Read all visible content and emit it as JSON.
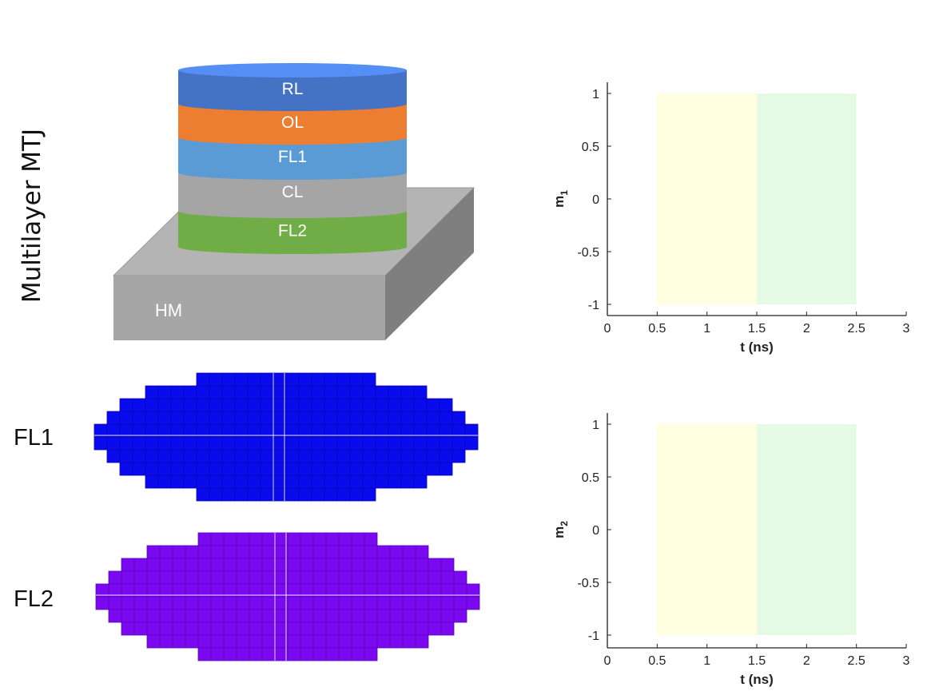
{
  "diagram": {
    "title": "Multilayer MTJ",
    "layers": [
      {
        "label": "RL",
        "color": "#4472C4"
      },
      {
        "label": "OL",
        "color": "#ED7D31"
      },
      {
        "label": "FL1",
        "color": "#5B9BD5"
      },
      {
        "label": "CL",
        "color": "#A5A5A5"
      },
      {
        "label": "FL2",
        "color": "#70AD47"
      }
    ],
    "substrate": {
      "label": "HM",
      "color": "#A6A6A6"
    },
    "grids": [
      {
        "label": "FL1",
        "color": "#0A0AEE"
      },
      {
        "label": "FL2",
        "color": "#7A08F0"
      }
    ]
  },
  "chart_data": [
    {
      "type": "line",
      "xlabel": "t (ns)",
      "ylabel": "m",
      "ylabel_sub": "1",
      "xlim": [
        0,
        3
      ],
      "ylim": [
        -1,
        1
      ],
      "xticks": [
        "0",
        "0.5",
        "1",
        "1.5",
        "2",
        "2.5",
        "3"
      ],
      "yticks": [
        "-1",
        "-0.5",
        "0",
        "0.5",
        "1"
      ],
      "shaded_regions": [
        {
          "x_start": 0.5,
          "x_end": 1.5,
          "color": "#FFFFE0"
        },
        {
          "x_start": 1.5,
          "x_end": 2.5,
          "color": "#E4FAE4"
        }
      ],
      "series": []
    },
    {
      "type": "line",
      "xlabel": "t (ns)",
      "ylabel": "m",
      "ylabel_sub": "2",
      "xlim": [
        0,
        3
      ],
      "ylim": [
        -1,
        1
      ],
      "xticks": [
        "0",
        "0.5",
        "1",
        "1.5",
        "2",
        "2.5",
        "3"
      ],
      "yticks": [
        "-1",
        "-0.5",
        "0",
        "0.5",
        "1"
      ],
      "shaded_regions": [
        {
          "x_start": 0.5,
          "x_end": 1.5,
          "color": "#FFFFE0"
        },
        {
          "x_start": 1.5,
          "x_end": 2.5,
          "color": "#E4FAE4"
        }
      ],
      "series": []
    }
  ]
}
